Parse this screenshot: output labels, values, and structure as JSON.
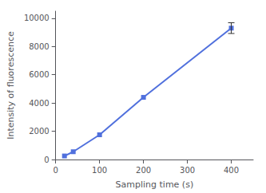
{
  "chart_data": {
    "type": "line",
    "xlabel": "Sampling time (s)",
    "ylabel": "Intensity of fluorescence",
    "x": [
      20,
      40,
      100,
      200,
      400
    ],
    "values": [
      250,
      550,
      1750,
      4400,
      9300
    ],
    "yerr": [
      0,
      0,
      0,
      0,
      380
    ],
    "xlim": [
      0,
      450
    ],
    "ylim": [
      0,
      10500
    ],
    "xticks": [
      0,
      100,
      200,
      300,
      400
    ],
    "yticks": [
      0,
      2000,
      4000,
      6000,
      8000,
      10000
    ],
    "marker": "square",
    "grid": false
  }
}
